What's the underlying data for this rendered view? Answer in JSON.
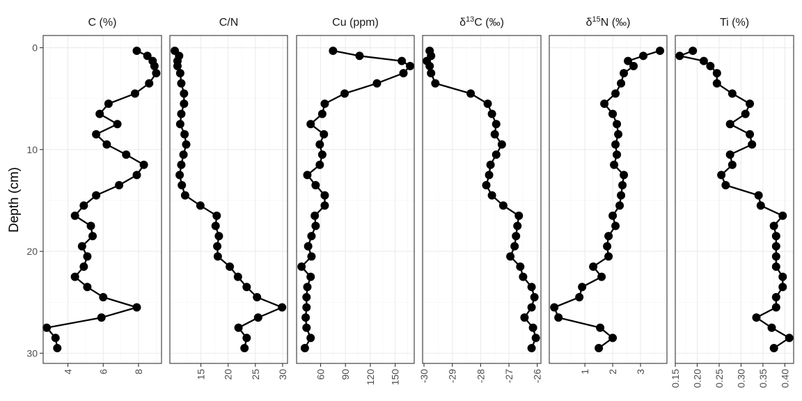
{
  "chart_data": {
    "type": "line",
    "layout": "faceted-depth-profile",
    "ylabel": "Depth (cm)",
    "y_reversed": true,
    "ylim": [
      -1.2,
      31
    ],
    "y_ticks": [
      0,
      10,
      20,
      30
    ],
    "y_tick_labels": [
      "0",
      "10",
      "20",
      "30"
    ],
    "grid": true,
    "colors": {
      "points": "#000000",
      "line": "#000000",
      "panel_border": "#333333",
      "grid": "#ebebeb"
    },
    "panels": [
      {
        "id": "c",
        "title_parts": [
          {
            "text": "C (%)"
          }
        ],
        "xlim": [
          2.6,
          9.3
        ],
        "x_ticks": [
          4,
          6,
          8
        ],
        "x_tick_labels": [
          "4",
          "6",
          "8"
        ],
        "x_tick_rotated": true,
        "points": [
          [
            7.9,
            0.3
          ],
          [
            8.5,
            0.8
          ],
          [
            8.8,
            1.3
          ],
          [
            8.9,
            1.8
          ],
          [
            9.0,
            2.5
          ],
          [
            8.6,
            3.5
          ],
          [
            7.8,
            4.5
          ],
          [
            6.3,
            5.5
          ],
          [
            5.8,
            6.5
          ],
          [
            6.8,
            7.5
          ],
          [
            5.6,
            8.5
          ],
          [
            6.2,
            9.5
          ],
          [
            7.3,
            10.5
          ],
          [
            8.3,
            11.5
          ],
          [
            7.9,
            12.5
          ],
          [
            6.9,
            13.5
          ],
          [
            5.6,
            14.5
          ],
          [
            4.9,
            15.5
          ],
          [
            4.4,
            16.5
          ],
          [
            5.3,
            17.5
          ],
          [
            5.4,
            18.5
          ],
          [
            4.8,
            19.5
          ],
          [
            5.1,
            20.5
          ],
          [
            4.9,
            21.5
          ],
          [
            4.4,
            22.5
          ],
          [
            5.1,
            23.5
          ],
          [
            6.0,
            24.5
          ],
          [
            7.9,
            25.5
          ],
          [
            5.9,
            26.5
          ],
          [
            2.8,
            27.5
          ],
          [
            3.3,
            28.5
          ],
          [
            3.4,
            29.5
          ]
        ]
      },
      {
        "id": "cn",
        "title_parts": [
          {
            "text": "C/N"
          }
        ],
        "xlim": [
          9.3,
          30.9
        ],
        "x_ticks": [
          15,
          20,
          25,
          30
        ],
        "x_tick_labels": [
          "15",
          "20",
          "25",
          "30"
        ],
        "x_tick_rotated": true,
        "points": [
          [
            10.2,
            0.3
          ],
          [
            11.0,
            0.8
          ],
          [
            10.7,
            1.3
          ],
          [
            10.7,
            1.8
          ],
          [
            11.2,
            2.5
          ],
          [
            11.4,
            3.5
          ],
          [
            11.9,
            4.5
          ],
          [
            11.9,
            5.5
          ],
          [
            11.4,
            6.5
          ],
          [
            11.2,
            7.5
          ],
          [
            12.0,
            8.5
          ],
          [
            12.3,
            9.5
          ],
          [
            11.8,
            10.5
          ],
          [
            11.4,
            11.5
          ],
          [
            11.1,
            12.5
          ],
          [
            11.5,
            13.5
          ],
          [
            12.1,
            14.5
          ],
          [
            14.9,
            15.5
          ],
          [
            17.9,
            16.5
          ],
          [
            17.7,
            17.5
          ],
          [
            18.3,
            18.5
          ],
          [
            18.0,
            19.5
          ],
          [
            18.1,
            20.5
          ],
          [
            20.3,
            21.5
          ],
          [
            21.8,
            22.5
          ],
          [
            23.4,
            23.5
          ],
          [
            25.3,
            24.5
          ],
          [
            29.9,
            25.5
          ],
          [
            25.5,
            26.5
          ],
          [
            21.9,
            27.5
          ],
          [
            23.4,
            28.5
          ],
          [
            23.0,
            29.5
          ]
        ]
      },
      {
        "id": "cu",
        "title_parts": [
          {
            "text": "Cu (ppm)"
          }
        ],
        "xlim": [
          31,
          173
        ],
        "x_ticks": [
          60,
          90,
          120,
          150
        ],
        "x_tick_labels": [
          "60",
          "90",
          "120",
          "150"
        ],
        "x_tick_rotated": true,
        "points": [
          [
            75,
            0.3
          ],
          [
            107,
            0.8
          ],
          [
            158,
            1.3
          ],
          [
            168,
            1.8
          ],
          [
            160,
            2.5
          ],
          [
            128,
            3.5
          ],
          [
            89,
            4.5
          ],
          [
            65,
            5.5
          ],
          [
            62,
            6.5
          ],
          [
            48,
            7.5
          ],
          [
            64,
            8.5
          ],
          [
            59,
            9.5
          ],
          [
            62,
            10.5
          ],
          [
            59,
            11.5
          ],
          [
            44,
            12.5
          ],
          [
            54,
            13.5
          ],
          [
            65,
            14.5
          ],
          [
            65,
            15.5
          ],
          [
            53,
            16.5
          ],
          [
            54,
            17.5
          ],
          [
            49,
            18.5
          ],
          [
            45,
            19.5
          ],
          [
            49,
            20.5
          ],
          [
            37,
            21.5
          ],
          [
            48,
            22.5
          ],
          [
            44,
            23.5
          ],
          [
            43,
            24.5
          ],
          [
            43,
            25.5
          ],
          [
            42,
            26.5
          ],
          [
            43,
            27.5
          ],
          [
            48,
            28.5
          ],
          [
            41,
            29.5
          ]
        ]
      },
      {
        "id": "d13c",
        "title_parts": [
          {
            "text": "δ"
          },
          {
            "text": "13",
            "sup": true
          },
          {
            "text": "C (‰)"
          }
        ],
        "xlim": [
          -30.05,
          -25.87
        ],
        "x_ticks": [
          -30,
          -29,
          -28,
          -27,
          -26
        ],
        "x_tick_labels": [
          "-30",
          "-29",
          "-28",
          "-27",
          "-26"
        ],
        "x_tick_rotated": true,
        "points": [
          [
            -29.8,
            0.3
          ],
          [
            -29.75,
            0.8
          ],
          [
            -29.9,
            1.3
          ],
          [
            -29.8,
            1.8
          ],
          [
            -29.75,
            2.5
          ],
          [
            -29.6,
            3.5
          ],
          [
            -28.35,
            4.5
          ],
          [
            -27.75,
            5.5
          ],
          [
            -27.6,
            6.5
          ],
          [
            -27.45,
            7.5
          ],
          [
            -27.5,
            8.5
          ],
          [
            -27.25,
            9.5
          ],
          [
            -27.45,
            10.5
          ],
          [
            -27.65,
            11.5
          ],
          [
            -27.7,
            12.5
          ],
          [
            -27.8,
            13.5
          ],
          [
            -27.6,
            14.5
          ],
          [
            -27.2,
            15.5
          ],
          [
            -26.65,
            16.5
          ],
          [
            -26.7,
            17.5
          ],
          [
            -26.75,
            18.5
          ],
          [
            -26.8,
            19.5
          ],
          [
            -26.95,
            20.5
          ],
          [
            -26.6,
            21.5
          ],
          [
            -26.5,
            22.5
          ],
          [
            -26.2,
            23.5
          ],
          [
            -26.1,
            24.5
          ],
          [
            -26.2,
            25.5
          ],
          [
            -26.45,
            26.5
          ],
          [
            -26.15,
            27.5
          ],
          [
            -26.05,
            28.5
          ],
          [
            -26.2,
            29.5
          ]
        ]
      },
      {
        "id": "d15n",
        "title_parts": [
          {
            "text": "δ"
          },
          {
            "text": "15",
            "sup": true
          },
          {
            "text": "N (‰)"
          }
        ],
        "xlim": [
          -0.28,
          3.95
        ],
        "x_ticks": [
          1,
          2,
          3
        ],
        "x_tick_labels": [
          "1",
          "2",
          "3"
        ],
        "x_tick_rotated": true,
        "points": [
          [
            3.7,
            0.3
          ],
          [
            3.1,
            0.8
          ],
          [
            2.55,
            1.3
          ],
          [
            2.75,
            1.8
          ],
          [
            2.4,
            2.5
          ],
          [
            2.3,
            3.5
          ],
          [
            2.1,
            4.5
          ],
          [
            1.7,
            5.5
          ],
          [
            2.0,
            6.5
          ],
          [
            2.15,
            7.5
          ],
          [
            2.2,
            8.5
          ],
          [
            2.1,
            9.5
          ],
          [
            2.15,
            10.5
          ],
          [
            2.05,
            11.5
          ],
          [
            2.4,
            12.5
          ],
          [
            2.35,
            13.5
          ],
          [
            2.3,
            14.5
          ],
          [
            2.25,
            15.5
          ],
          [
            2.0,
            16.5
          ],
          [
            2.1,
            17.5
          ],
          [
            1.85,
            18.5
          ],
          [
            1.8,
            19.5
          ],
          [
            1.85,
            20.5
          ],
          [
            1.3,
            21.5
          ],
          [
            1.6,
            22.5
          ],
          [
            0.9,
            23.5
          ],
          [
            0.8,
            24.5
          ],
          [
            -0.1,
            25.5
          ],
          [
            0.05,
            26.5
          ],
          [
            1.55,
            27.5
          ],
          [
            2.0,
            28.5
          ],
          [
            1.5,
            29.5
          ]
        ]
      },
      {
        "id": "ti",
        "title_parts": [
          {
            "text": "Ti (%)"
          }
        ],
        "xlim": [
          0.15,
          0.42
        ],
        "x_ticks": [
          0.15,
          0.2,
          0.25,
          0.3,
          0.35,
          0.4
        ],
        "x_tick_labels": [
          "0.15",
          "0.20",
          "0.25",
          "0.30",
          "0.35",
          "0.40"
        ],
        "x_tick_rotated": true,
        "points": [
          [
            0.19,
            0.3
          ],
          [
            0.16,
            0.8
          ],
          [
            0.215,
            1.3
          ],
          [
            0.23,
            1.8
          ],
          [
            0.245,
            2.5
          ],
          [
            0.245,
            3.5
          ],
          [
            0.28,
            4.5
          ],
          [
            0.32,
            5.5
          ],
          [
            0.31,
            6.5
          ],
          [
            0.275,
            7.5
          ],
          [
            0.32,
            8.5
          ],
          [
            0.325,
            9.5
          ],
          [
            0.275,
            10.5
          ],
          [
            0.28,
            11.5
          ],
          [
            0.255,
            12.5
          ],
          [
            0.265,
            13.5
          ],
          [
            0.34,
            14.5
          ],
          [
            0.345,
            15.5
          ],
          [
            0.395,
            16.5
          ],
          [
            0.375,
            17.5
          ],
          [
            0.38,
            18.5
          ],
          [
            0.38,
            19.5
          ],
          [
            0.38,
            20.5
          ],
          [
            0.38,
            21.5
          ],
          [
            0.395,
            22.5
          ],
          [
            0.395,
            23.5
          ],
          [
            0.38,
            24.5
          ],
          [
            0.38,
            25.5
          ],
          [
            0.335,
            26.5
          ],
          [
            0.37,
            27.5
          ],
          [
            0.41,
            28.5
          ],
          [
            0.375,
            29.5
          ]
        ]
      }
    ]
  }
}
